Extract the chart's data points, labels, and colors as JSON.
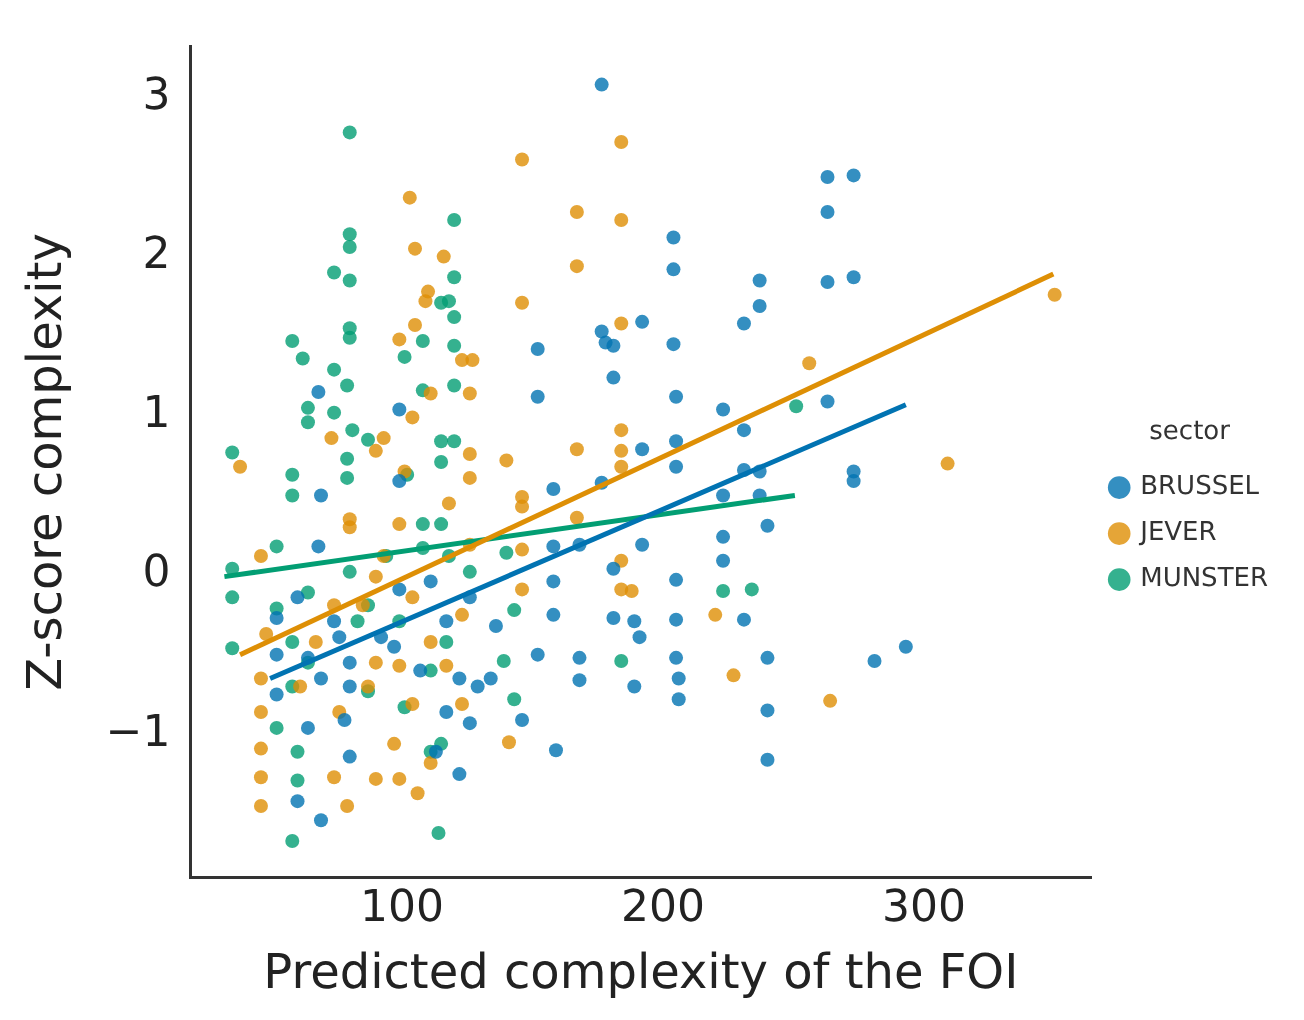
{
  "chart_data": {
    "type": "scatter",
    "xlabel": "Predicted complexity of the FOI",
    "ylabel": "Z-score complexity",
    "legend_title": "sector",
    "legend": "right",
    "grid": false,
    "xlim": [
      19,
      364
    ],
    "ylim": [
      -1.9,
      3.32
    ],
    "xticks": [
      100,
      200,
      300
    ],
    "yticks": [
      -1,
      0,
      1,
      2,
      3
    ],
    "series": [
      {
        "name": "BRUSSEL",
        "color": "#0173b2",
        "marker": "circle",
        "x": [
          176.5,
          263,
          273,
          263,
          204,
          204,
          263,
          273,
          237,
          237,
          231,
          192,
          176.5,
          178,
          181,
          152,
          204,
          181,
          152,
          205,
          263,
          223,
          231,
          205,
          192,
          205,
          231,
          237,
          273,
          273,
          176.5,
          158,
          223,
          237,
          240,
          192,
          168,
          158,
          223,
          181,
          205,
          223,
          158,
          181,
          189,
          205,
          231,
          158,
          136,
          191,
          152,
          168,
          205,
          240,
          281,
          293,
          168,
          189,
          206,
          206,
          240,
          240,
          159,
          134,
          146,
          122,
          69,
          60,
          68,
          99,
          68,
          69,
          99,
          60,
          52,
          52,
          52,
          64,
          69,
          74,
          80,
          80,
          78,
          80,
          64,
          92,
          99,
          97,
          111,
          117,
          126,
          122,
          129,
          126,
          117,
          107,
          113,
          76
        ],
        "values": [
          3.08,
          2.5,
          2.51,
          2.28,
          2.12,
          1.92,
          1.84,
          1.87,
          1.85,
          1.69,
          1.58,
          1.59,
          1.53,
          1.46,
          1.44,
          1.42,
          1.45,
          1.24,
          1.12,
          1.12,
          1.09,
          1.04,
          0.91,
          0.84,
          0.79,
          0.68,
          0.66,
          0.65,
          0.65,
          0.59,
          0.58,
          0.54,
          0.5,
          0.5,
          0.31,
          0.19,
          0.19,
          0.18,
          0.24,
          0.04,
          -0.03,
          0.09,
          -0.04,
          -0.27,
          -0.29,
          -0.28,
          -0.28,
          -0.25,
          -0.32,
          -0.39,
          -0.5,
          -0.52,
          -0.52,
          -0.52,
          -0.54,
          -0.45,
          -0.66,
          -0.7,
          -0.65,
          -0.78,
          -0.85,
          -1.16,
          -1.1,
          -0.65,
          -0.91,
          -1.25,
          -1.54,
          -1.42,
          1.15,
          1.04,
          0.18,
          0.5,
          0.59,
          -0.14,
          -0.27,
          -0.5,
          -0.75,
          -0.52,
          -0.65,
          -0.29,
          -0.55,
          -0.7,
          -0.91,
          -1.14,
          -0.96,
          -0.39,
          -0.09,
          -0.45,
          -0.04,
          -0.29,
          -0.14,
          -0.65,
          -0.7,
          -0.93,
          -0.86,
          -0.6,
          -1.11,
          -0.39
        ]
      },
      {
        "name": "JEVER",
        "color": "#de8f05",
        "marker": "circle",
        "x": [
          184,
          146,
          103,
          167,
          184,
          167,
          105,
          116,
          146,
          110,
          109,
          105,
          99,
          123,
          184,
          256,
          350,
          309,
          264,
          227,
          220,
          188,
          184,
          184,
          184,
          184,
          184,
          167,
          167,
          140,
          146,
          146,
          146,
          146,
          141,
          123,
          123,
          126,
          111,
          104,
          90,
          93,
          101,
          126,
          126,
          118,
          99,
          93,
          90,
          104,
          85,
          80,
          73,
          80,
          38,
          46,
          48,
          46,
          46,
          46,
          46,
          46,
          79,
          74,
          90,
          99,
          106,
          111,
          97,
          76,
          87,
          99,
          111,
          90,
          67,
          61,
          74,
          104,
          117,
          126,
          127
        ],
        "values": [
          2.72,
          2.61,
          2.37,
          2.28,
          2.23,
          1.94,
          2.05,
          2.0,
          1.71,
          1.78,
          1.72,
          1.57,
          1.48,
          1.35,
          1.58,
          1.33,
          1.76,
          0.7,
          -0.79,
          -0.63,
          -0.25,
          -0.1,
          -0.09,
          0.09,
          0.91,
          0.78,
          0.68,
          0.79,
          0.36,
          0.72,
          0.49,
          0.43,
          0.16,
          -0.09,
          -1.05,
          -0.81,
          -0.25,
          1.14,
          1.14,
          0.99,
          0.78,
          0.86,
          0.65,
          0.76,
          0.61,
          0.45,
          0.32,
          0.12,
          -0.01,
          -0.14,
          -0.19,
          0.3,
          0.86,
          0.35,
          0.68,
          0.12,
          -0.37,
          -0.65,
          -0.86,
          -1.09,
          -1.27,
          -1.45,
          -1.45,
          -1.27,
          -1.28,
          -1.28,
          -1.37,
          -1.18,
          -1.06,
          -0.86,
          -0.7,
          -0.57,
          -0.42,
          -0.55,
          -0.42,
          -0.7,
          -0.19,
          -0.81,
          -0.57,
          0.19,
          1.35
        ]
      },
      {
        "name": "MUNSTER",
        "color": "#029e73",
        "marker": "circle",
        "x": [
          80,
          120,
          80,
          80,
          74,
          80,
          120,
          80,
          80,
          58,
          62,
          118,
          115,
          120,
          120,
          108,
          101,
          74,
          79,
          108,
          120,
          64,
          64,
          74,
          81,
          35,
          58,
          58,
          79,
          79,
          87,
          115,
          120,
          115,
          102,
          108,
          115,
          251,
          223,
          234,
          184,
          143,
          139,
          143,
          126,
          140,
          35,
          35,
          35,
          52,
          52,
          58,
          58,
          64,
          60,
          52,
          60,
          58,
          80,
          87,
          87,
          83,
          99,
          101,
          111,
          117,
          114,
          115,
          111,
          118,
          108,
          94,
          64
        ],
        "values": [
          2.78,
          2.23,
          2.14,
          2.06,
          1.9,
          1.85,
          1.87,
          1.55,
          1.49,
          1.47,
          1.36,
          1.72,
          1.71,
          1.62,
          1.44,
          1.47,
          1.37,
          1.29,
          1.19,
          1.16,
          1.19,
          1.05,
          0.96,
          1.02,
          0.91,
          0.77,
          0.63,
          0.5,
          0.73,
          0.61,
          0.85,
          0.84,
          0.84,
          0.71,
          0.63,
          0.32,
          0.32,
          1.06,
          -0.1,
          -0.09,
          -0.54,
          -0.78,
          -0.54,
          -0.22,
          0.02,
          0.14,
          0.04,
          -0.14,
          -0.46,
          0.18,
          -0.21,
          -0.42,
          -0.7,
          -0.55,
          -1.11,
          -0.96,
          -1.29,
          -1.67,
          0.02,
          -0.19,
          -0.73,
          -0.29,
          -0.29,
          -0.83,
          -0.6,
          -0.42,
          -1.62,
          -1.06,
          -1.11,
          0.12,
          0.17,
          0.12,
          -0.11
        ]
      },
      {
        "color": "#0173b2",
        "type": "line",
        "marker": "none",
        "x": [
          49.5,
          293
        ],
        "values": [
          -0.65,
          1.07
        ]
      },
      {
        "color": "#de8f05",
        "type": "line",
        "marker": "none",
        "x": [
          38,
          349.5
        ],
        "values": [
          -0.5,
          1.89
        ]
      },
      {
        "color": "#029e73",
        "type": "line",
        "marker": "none",
        "x": [
          32,
          250.5
        ],
        "values": [
          -0.01,
          0.5
        ]
      }
    ]
  }
}
